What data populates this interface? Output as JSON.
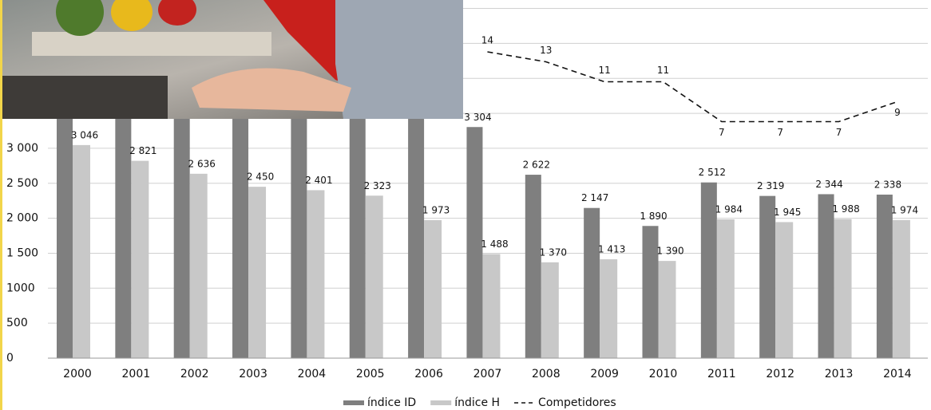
{
  "chart_data": {
    "type": "bar",
    "categories": [
      "2000",
      "2001",
      "2002",
      "2003",
      "2004",
      "2005",
      "2006",
      "2007",
      "2008",
      "2009",
      "2010",
      "2011",
      "2012",
      "2013",
      "2014"
    ],
    "series": [
      {
        "name": "índice ID",
        "color": "#7f7f7f",
        "values": [
          3500,
          3500,
          3500,
          3500,
          3500,
          3500,
          3500,
          3304,
          2622,
          2147,
          1890,
          2512,
          2319,
          2344,
          2338
        ],
        "value_labels": [
          null,
          null,
          null,
          null,
          null,
          null,
          null,
          "3 304",
          "2 622",
          "2 147",
          "1 890",
          "2 512",
          "2 319",
          "2 344",
          "2 338"
        ]
      },
      {
        "name": "índice H",
        "color": "#c8c8c8",
        "values": [
          3046,
          2821,
          2636,
          2450,
          2401,
          2323,
          1973,
          1488,
          1370,
          1413,
          1390,
          1984,
          1945,
          1988,
          1974
        ],
        "value_labels": [
          "3 046",
          "2 821",
          "2 636",
          "2 450",
          "2 401",
          "2 323",
          "1 973",
          "1 488",
          "1 370",
          "1 413",
          "1 390",
          "1 984",
          "1 945",
          "1 988",
          "1 974"
        ]
      },
      {
        "name": "Competidores",
        "type": "line",
        "axis": "y2",
        "color": "#111111",
        "dashed": true,
        "values": [
          null,
          null,
          null,
          null,
          null,
          null,
          null,
          14,
          13,
          11,
          11,
          7,
          7,
          7,
          9
        ]
      }
    ],
    "ylim": [
      0,
      5120
    ],
    "yticks": [
      0,
      500,
      1000,
      {
        "value": 1500,
        "label": "1 500"
      },
      {
        "value": 2000,
        "label": "2 000"
      },
      {
        "value": 2500,
        "label": "2 500"
      },
      {
        "value": 3000,
        "label": "3 000"
      }
    ],
    "y2lim": [
      0,
      19.2
    ],
    "grid": true,
    "legend": "bottom"
  }
}
